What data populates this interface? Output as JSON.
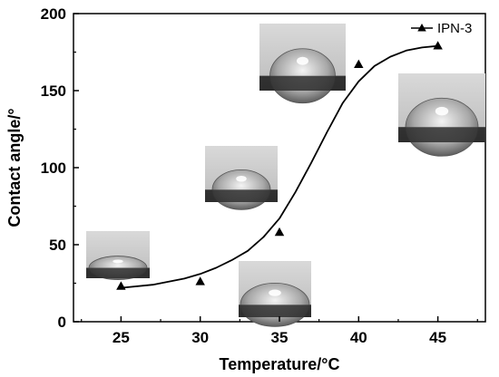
{
  "chart_data": {
    "type": "line",
    "title": "",
    "xlabel": "Temperature/°C",
    "ylabel": "Contact angle/°",
    "xlim": [
      22,
      48
    ],
    "ylim": [
      0,
      200
    ],
    "xticks": [
      25,
      30,
      35,
      40,
      45
    ],
    "yticks": [
      0,
      50,
      100,
      150,
      200
    ],
    "legend_position": "top-right",
    "grid": false,
    "series": [
      {
        "name": "IPN-3",
        "marker": "triangle",
        "color": "#000000",
        "x": [
          25,
          30,
          35,
          40,
          45
        ],
        "y": [
          23,
          26,
          58,
          167,
          179
        ]
      }
    ],
    "fit_curve": {
      "x": [
        25,
        27,
        29,
        30,
        31,
        32,
        33,
        34,
        35,
        36,
        37,
        38,
        39,
        40,
        41,
        42,
        43,
        44,
        45
      ],
      "y": [
        22,
        24,
        28,
        31,
        35,
        40,
        46,
        55,
        67,
        84,
        103,
        123,
        142,
        156,
        166,
        172,
        176,
        178,
        179
      ]
    },
    "inset_images": [
      "droplet-photo-25c",
      "droplet-photo-30c",
      "droplet-photo-35c",
      "droplet-photo-40c",
      "droplet-photo-45c"
    ]
  }
}
